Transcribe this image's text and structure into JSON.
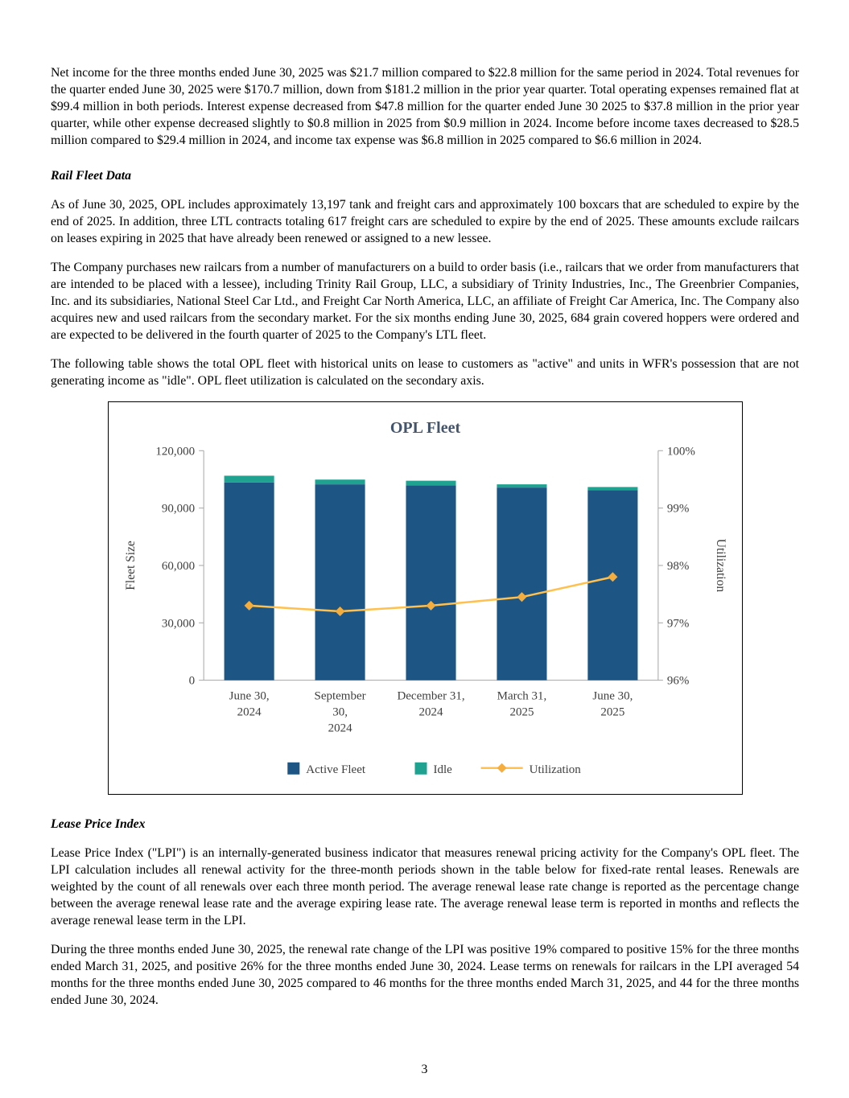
{
  "doc": {
    "page_number": "3",
    "p1": "Net income for the three months ended June 30, 2025 was $21.7 million compared to $22.8 million for the same period in 2024. Total revenues for the quarter ended June 30, 2025 were $170.7 million, down from $181.2 million in the prior year quarter. Total operating expenses remained flat at $99.4 million in both periods. Interest expense decreased from $47.8 million for the quarter ended June 30 2025 to $37.8 million in the prior year quarter, while other expense decreased slightly to $0.8 million in 2025 from $0.9 million in 2024. Income before income taxes decreased to $28.5 million compared to $29.4 million in 2024, and income tax expense was $6.8 million in 2025 compared to $6.6 million in 2024.",
    "heading_rail": "Rail Fleet Data",
    "p2": "As of June 30, 2025, OPL includes approximately 13,197 tank and freight cars and approximately 100 boxcars that are scheduled to expire by the end of 2025. In addition, three LTL contracts totaling 617 freight cars are scheduled to expire by the end of 2025. These amounts exclude railcars on leases expiring in 2025 that have already been renewed or assigned to a new lessee.",
    "p3": "The Company purchases new railcars from a number of manufacturers on a build to order basis (i.e., railcars that we order from manufacturers that are intended to be placed with a lessee), including Trinity Rail Group, LLC, a subsidiary of Trinity Industries, Inc., The Greenbrier Companies, Inc. and its subsidiaries, National Steel Car Ltd., and Freight Car North America, LLC, an affiliate of Freight Car America, Inc. The Company also acquires new and used railcars from the secondary market. For the six months ending June 30, 2025, 684 grain covered hoppers were ordered and are expected to be delivered in the fourth quarter of 2025 to the Company's LTL fleet.",
    "p4": "The following table shows the total OPL fleet with historical units on lease to customers as \"active\" and units in WFR's possession that are not generating income as \"idle\". OPL fleet utilization is calculated on the secondary axis.",
    "heading_lpi": "Lease Price Index",
    "p5": "Lease Price Index (\"LPI\") is an internally-generated business indicator that measures renewal pricing activity for the Company's OPL fleet. The LPI calculation includes all renewal activity for the three-month periods shown in the table below for fixed-rate rental leases. Renewals are weighted by the count of all renewals over each three month period. The average renewal lease rate change is reported as the percentage change between the average renewal lease rate and the average expiring lease rate. The average renewal lease term is reported in months and reflects the average renewal lease term in the LPI.",
    "p6": "During the three months ended June 30, 2025, the renewal rate change of the LPI was positive 19% compared to positive 15% for the three months ended March 31, 2025, and positive 26% for the three months ended June 30, 2024. Lease terms on renewals for railcars in the LPI averaged 54 months for the three months ended June 30, 2025 compared to 46 months for the three months ended March 31, 2025, and 44 for the three months ended June 30, 2024."
  },
  "chart_data": {
    "type": "bar",
    "subtype": "stacked-bar-with-line",
    "title": "OPL Fleet",
    "categories": [
      [
        "June 30,",
        "2024"
      ],
      [
        "September",
        "30,",
        "2024"
      ],
      [
        "December 31,",
        "2024"
      ],
      [
        "March 31,",
        "2025"
      ],
      [
        "June 30,",
        "2025"
      ]
    ],
    "series": [
      {
        "name": "Active Fleet",
        "type": "bar",
        "axis": "left",
        "color": "#1d5685",
        "values": [
          103400,
          102400,
          101900,
          100700,
          99400
        ]
      },
      {
        "name": "Idle",
        "type": "bar",
        "axis": "left",
        "color": "#1fa390",
        "values": [
          3500,
          2500,
          2400,
          1700,
          1600
        ]
      },
      {
        "name": "Utilization",
        "type": "line",
        "axis": "right",
        "color": "#FFC04D",
        "marker_color": "#F5AE3D",
        "values": [
          97.3,
          97.2,
          97.3,
          97.45,
          97.8
        ]
      }
    ],
    "left_axis": {
      "label": "Fleet Size",
      "min": 0,
      "max": 120000,
      "step": 30000
    },
    "right_axis": {
      "label": "Utilization",
      "min": 96,
      "max": 100,
      "step": 1,
      "suffix": "%"
    },
    "grid": false,
    "legend_position": "bottom"
  }
}
